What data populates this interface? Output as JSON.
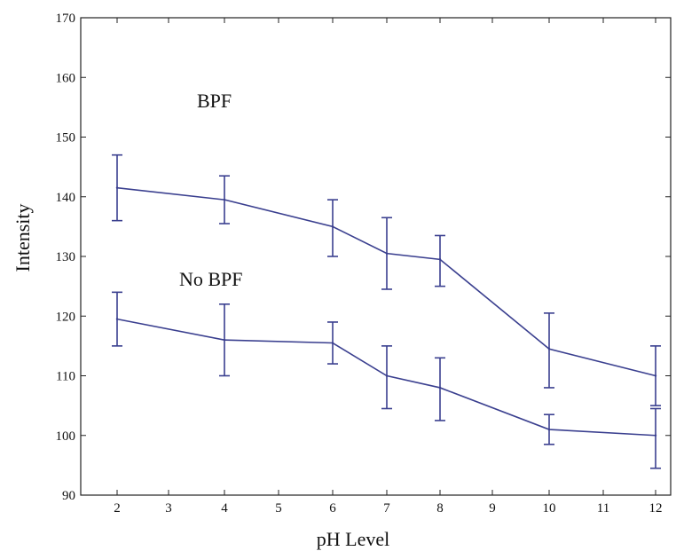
{
  "chart_data": {
    "type": "line",
    "title": "",
    "xlabel": "pH Level",
    "ylabel": "Intensity",
    "x_ticks": [
      "2",
      "3",
      "4",
      "5",
      "6",
      "7",
      "8",
      "9",
      "10",
      "11",
      "12"
    ],
    "y_ticks": [
      90,
      100,
      110,
      120,
      130,
      140,
      150,
      160,
      170
    ],
    "ylim": [
      90,
      170
    ],
    "grid": false,
    "legend": "none",
    "x": [
      "2",
      "4",
      "6",
      "7",
      "8",
      "10",
      "12"
    ],
    "series": [
      {
        "name": "BPF",
        "values": [
          141.5,
          139.5,
          135,
          130.5,
          129.5,
          114.5,
          110
        ],
        "err_low": [
          136,
          135.5,
          130,
          124.5,
          125,
          108,
          105
        ],
        "err_high": [
          147,
          143.5,
          139.5,
          136.5,
          133.5,
          120.5,
          115
        ]
      },
      {
        "name": "No BPF",
        "values": [
          119.5,
          116,
          115.5,
          110,
          108,
          101,
          100
        ],
        "err_low": [
          115,
          110,
          112,
          104.5,
          102.5,
          98.5,
          94.5
        ],
        "err_high": [
          124,
          122,
          119,
          115,
          113,
          103.5,
          104.5
        ]
      }
    ],
    "annotations": [
      "BPF",
      "No BPF"
    ],
    "line_color": "#3a3f8f"
  }
}
